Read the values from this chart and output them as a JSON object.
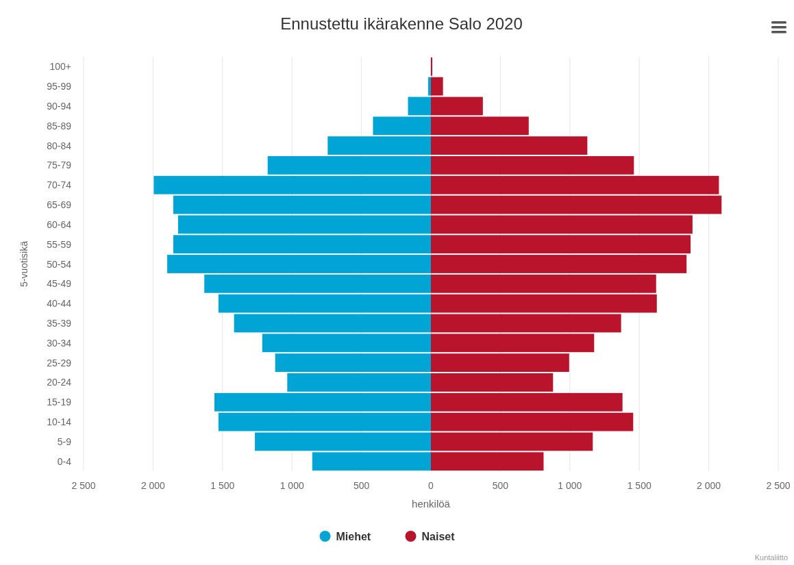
{
  "chart_data": {
    "type": "bar",
    "orientation": "horizontal",
    "stacked": true,
    "title": "Ennustettu ikärakenne Salo 2020",
    "xlabel": "henkilöä",
    "ylabel": "5-vuotisikä",
    "categories": [
      "100+",
      "95-99",
      "90-94",
      "85-89",
      "80-84",
      "75-79",
      "70-74",
      "65-69",
      "60-64",
      "55-59",
      "50-54",
      "45-49",
      "40-44",
      "35-39",
      "30-34",
      "25-29",
      "20-24",
      "15-19",
      "10-14",
      "5-9",
      "0-4"
    ],
    "series": [
      {
        "name": "Miehet",
        "color": "#00a5d6",
        "values": [
          null,
          -20,
          -165,
          -417,
          -743,
          -1175,
          -1995,
          -1854,
          -1820,
          -1854,
          -1898,
          -1631,
          -1529,
          -1417,
          -1214,
          -1121,
          -1034,
          -1558,
          -1529,
          -1267,
          -854
        ]
      },
      {
        "name": "Naiset",
        "color": "#b9142b",
        "values": [
          10,
          87,
          374,
          704,
          1126,
          1461,
          2073,
          2092,
          1883,
          1869,
          1840,
          1621,
          1626,
          1369,
          1175,
          995,
          879,
          1379,
          1456,
          1165,
          811
        ]
      }
    ],
    "xlim": [
      -2500,
      2500
    ],
    "xticks": [
      {
        "value": -2500,
        "label": "2 500"
      },
      {
        "value": -2000,
        "label": "2 000"
      },
      {
        "value": -1500,
        "label": "1 500"
      },
      {
        "value": -1000,
        "label": "1 000"
      },
      {
        "value": -500,
        "label": "500"
      },
      0,
      500,
      {
        "value": 1000,
        "label": "1 000"
      },
      {
        "value": 1500,
        "label": "1 500"
      },
      {
        "value": 2000,
        "label": "2 000"
      },
      {
        "value": 2500,
        "label": "2 500"
      }
    ],
    "grid": "x",
    "legend": "bottom",
    "annotations": [
      "Kuntaliitto"
    ]
  }
}
